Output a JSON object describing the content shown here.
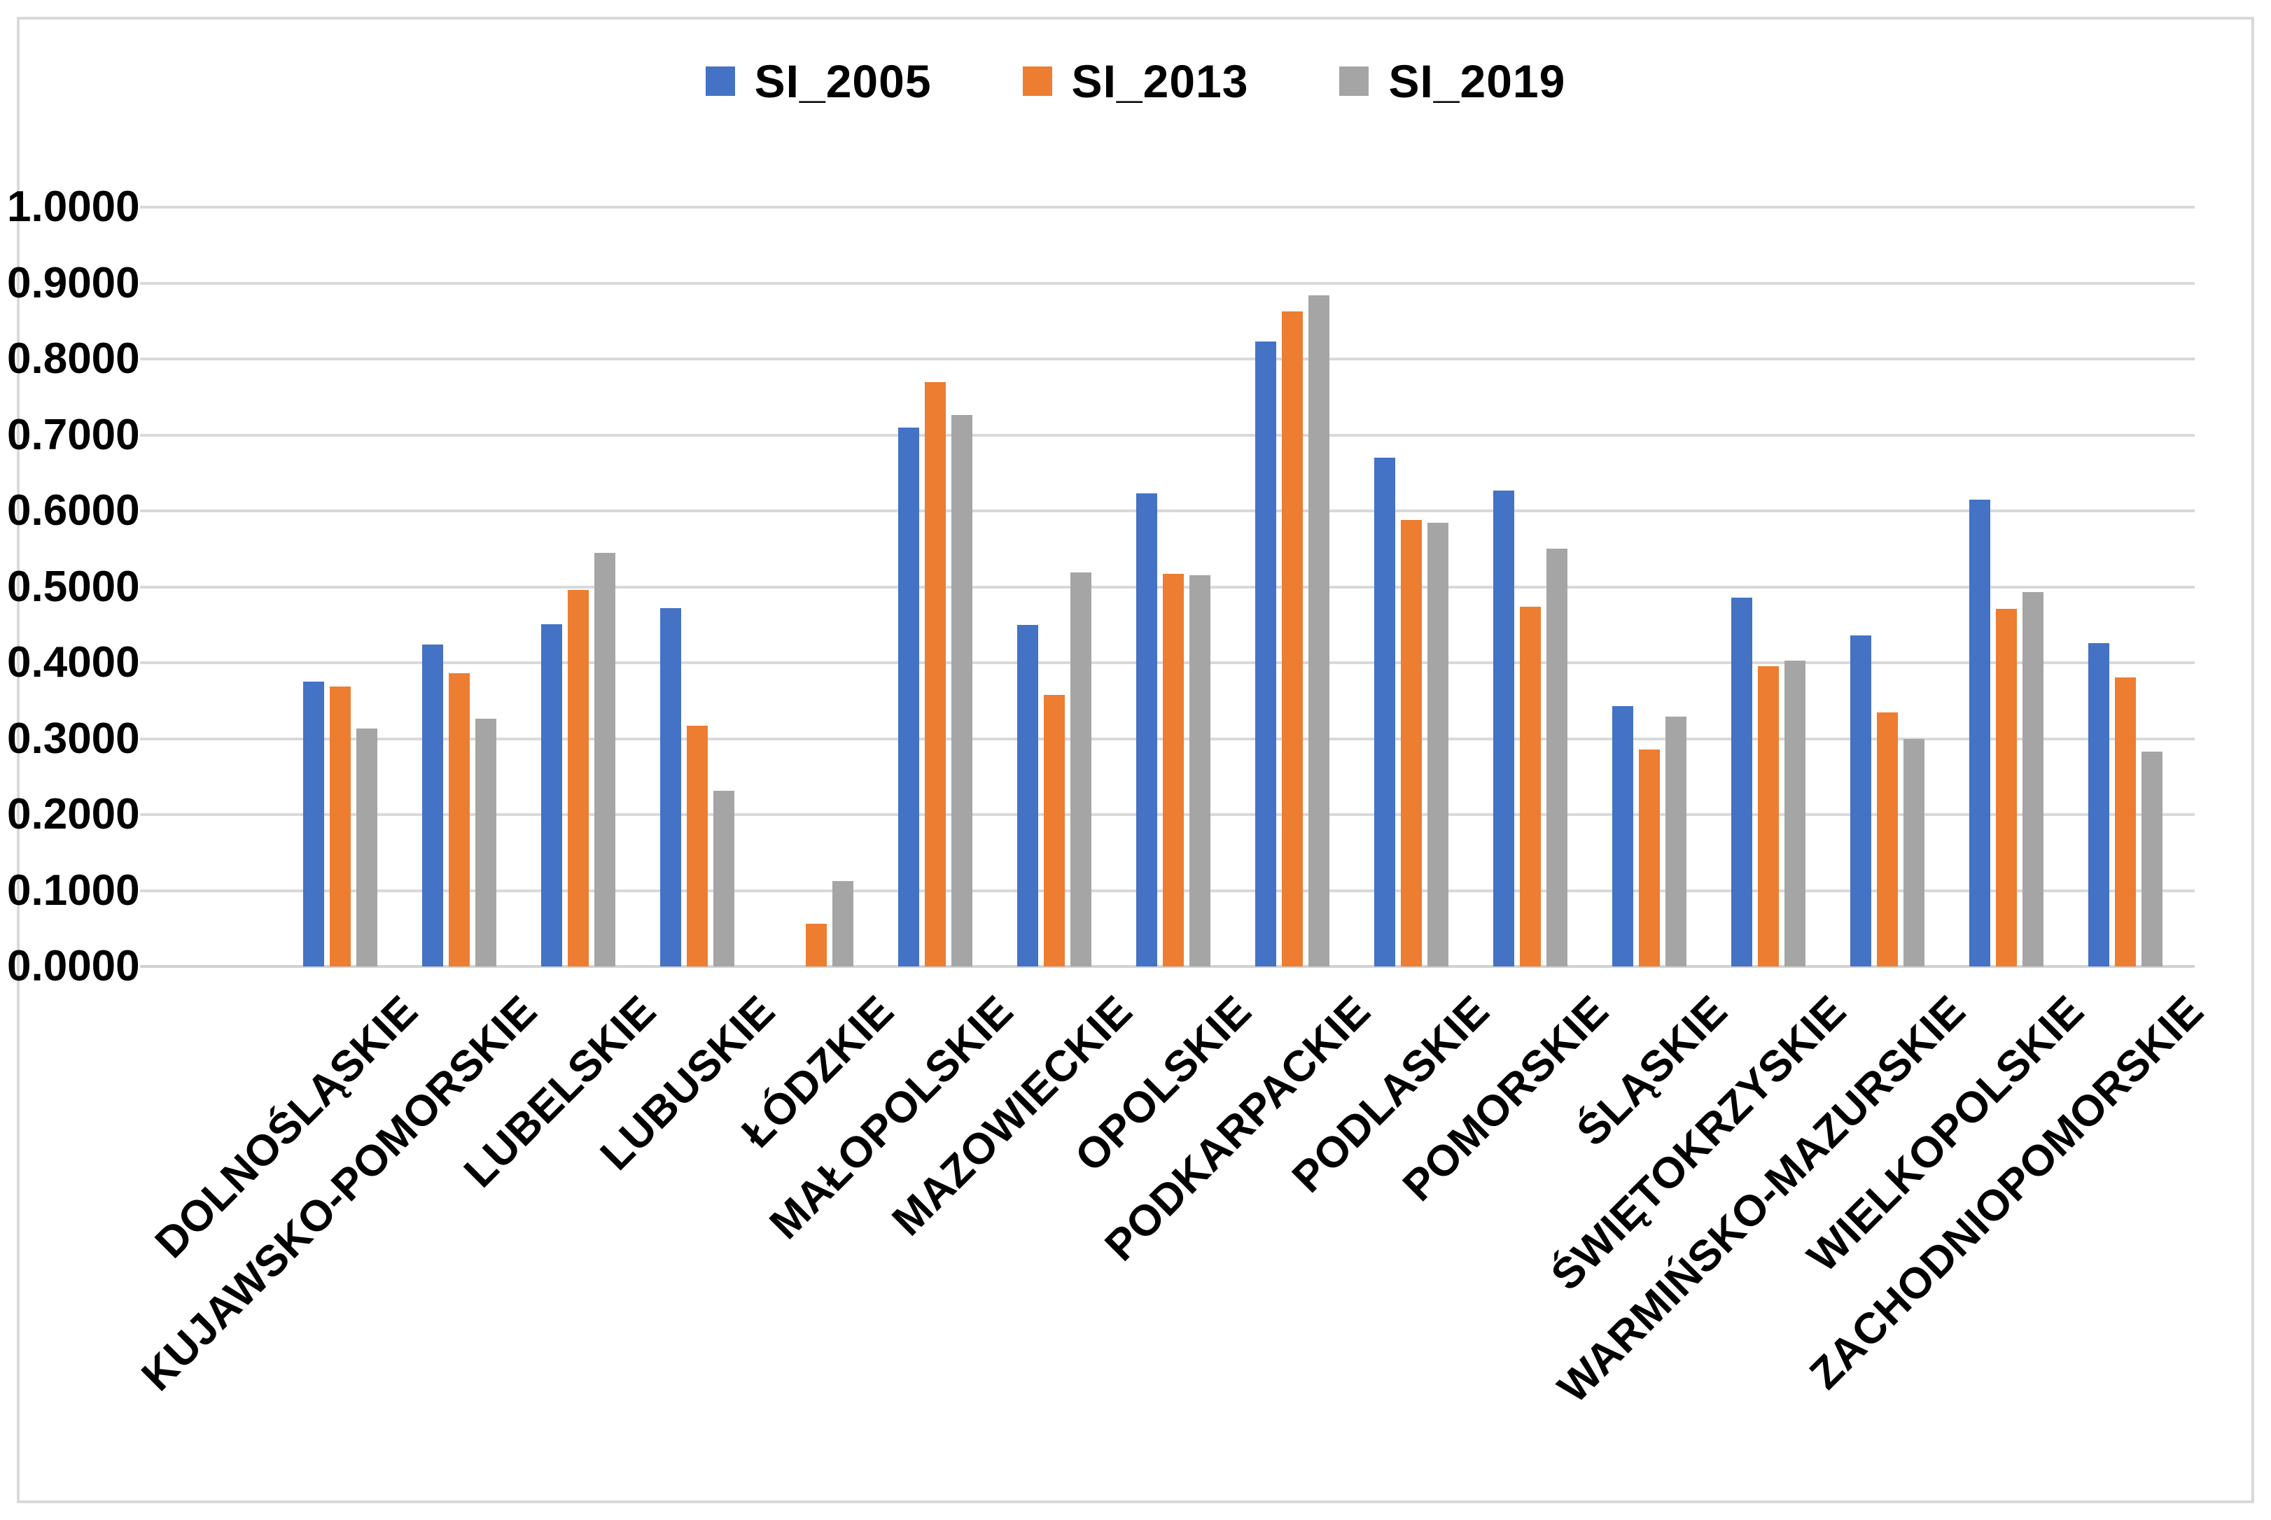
{
  "chart_data": {
    "type": "bar",
    "title": "",
    "xlabel": "",
    "ylabel": "",
    "categories": [
      "DOLNOŚLĄSKIE",
      "KUJAWSKO-POMORSKIE",
      "LUBELSKIE",
      "LUBUSKIE",
      "ŁÓDZKIE",
      "MAŁOPOLSKIE",
      "MAZOWIECKIE",
      "OPOLSKIE",
      "PODKARPACKIE",
      "PODLASKIE",
      "POMORSKIE",
      "ŚLĄSKIE",
      "ŚWIĘTOKRZYSKIE",
      "WARMIŃSKO-MAZURSKIE",
      "WIELKOPOLSKIE",
      "ZACHODNIOPOMORSKIE"
    ],
    "series": [
      {
        "name": "SI_2005",
        "color": "#4472C4",
        "values": [
          0.375,
          0.424,
          0.451,
          0.472,
          0.0,
          0.71,
          0.45,
          0.623,
          0.823,
          0.67,
          0.627,
          0.343,
          0.486,
          0.436,
          0.615,
          0.426
        ]
      },
      {
        "name": "SI_2013",
        "color": "#ED7D31",
        "values": [
          0.369,
          0.386,
          0.496,
          0.317,
          0.056,
          0.77,
          0.358,
          0.517,
          0.863,
          0.588,
          0.474,
          0.286,
          0.395,
          0.335,
          0.471,
          0.381
        ]
      },
      {
        "name": "SI_2019",
        "color": "#A5A5A5",
        "values": [
          0.313,
          0.326,
          0.545,
          0.231,
          0.112,
          0.726,
          0.519,
          0.515,
          0.884,
          0.584,
          0.55,
          0.329,
          0.403,
          0.3,
          0.493,
          0.283
        ]
      }
    ],
    "ylim": [
      0.0,
      1.0
    ],
    "y_tick_step": 0.1,
    "y_tick_labels_top_down": [
      "1.0000",
      "0.9000",
      "0.8000",
      "0.7000",
      "0.6000",
      "0.5000",
      "0.4000",
      "0.3000",
      "0.2000",
      "0.1000",
      "0.0000"
    ],
    "grid": "horizontal",
    "gridline_color": "#D9D9D9",
    "frame_color": "#D9D9D9",
    "legend_position": "top-center",
    "x_label_rotation_deg": 45
  }
}
